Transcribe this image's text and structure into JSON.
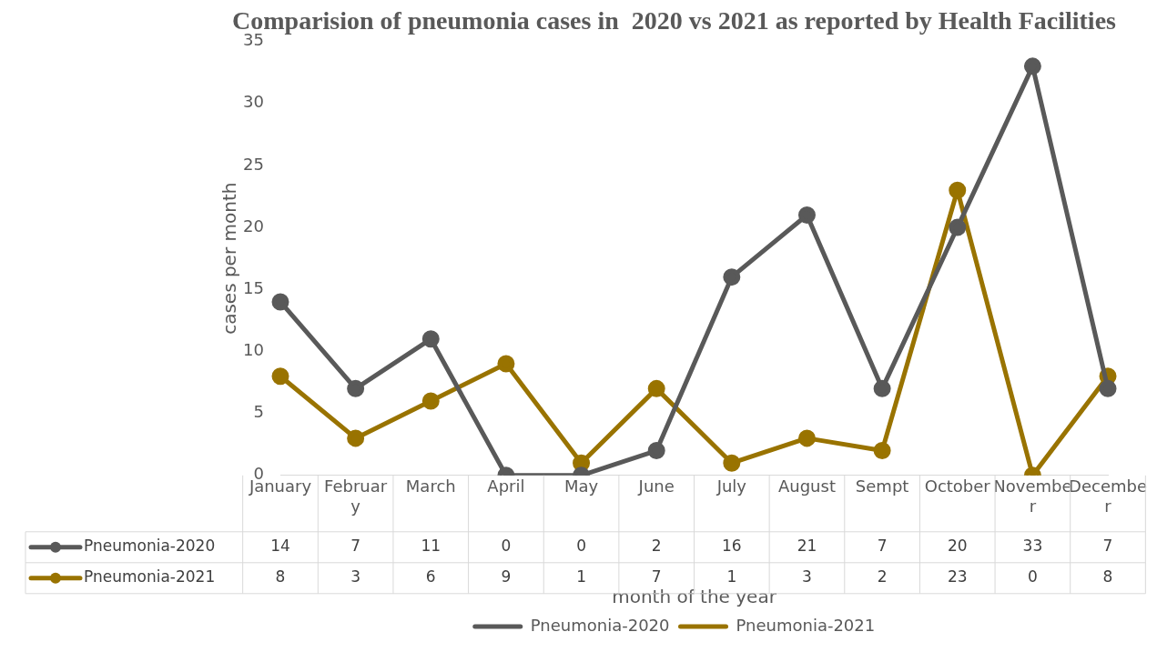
{
  "chart_data": {
    "type": "line",
    "title": "Comparision of pneumonia cases in  2020 vs 2021 as reported by Health Facilities",
    "xlabel": "month of the year",
    "ylabel": "cases per month",
    "categories": [
      "January",
      "February",
      "March",
      "April",
      "May",
      "June",
      "July",
      "August",
      "Sempt",
      "October",
      "November",
      "December"
    ],
    "series": [
      {
        "name": "Pneumonia-2020",
        "color": "#595959",
        "values": [
          14,
          7,
          11,
          0,
          0,
          2,
          16,
          21,
          7,
          20,
          33,
          7
        ]
      },
      {
        "name": "Pneumonia-2021",
        "color": "#997300",
        "values": [
          8,
          3,
          6,
          9,
          1,
          7,
          1,
          3,
          2,
          23,
          0,
          8
        ]
      }
    ],
    "ylim": [
      0,
      35
    ],
    "yticks": [
      0,
      5,
      10,
      15,
      20,
      25,
      30,
      35
    ],
    "grid": false,
    "legend": "bottom",
    "marker": "circle",
    "line_style": "solid",
    "data_labels": true
  }
}
